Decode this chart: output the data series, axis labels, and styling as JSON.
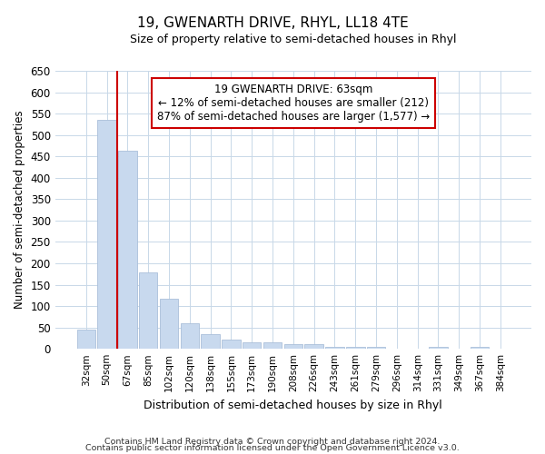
{
  "title": "19, GWENARTH DRIVE, RHYL, LL18 4TE",
  "subtitle": "Size of property relative to semi-detached houses in Rhyl",
  "xlabel": "Distribution of semi-detached houses by size in Rhyl",
  "ylabel": "Number of semi-detached properties",
  "categories": [
    "32sqm",
    "50sqm",
    "67sqm",
    "85sqm",
    "102sqm",
    "120sqm",
    "138sqm",
    "155sqm",
    "173sqm",
    "190sqm",
    "208sqm",
    "226sqm",
    "243sqm",
    "261sqm",
    "279sqm",
    "296sqm",
    "314sqm",
    "331sqm",
    "349sqm",
    "367sqm",
    "384sqm"
  ],
  "values": [
    45,
    535,
    463,
    178,
    118,
    60,
    34,
    21,
    15,
    15,
    10,
    11,
    5,
    5,
    4,
    1,
    0,
    4,
    0,
    4,
    0
  ],
  "bar_color": "#c8d9ee",
  "bar_edge_color": "#aabfda",
  "grid_color": "#c8d8e8",
  "background_color": "#ffffff",
  "fig_background": "#ffffff",
  "vline_color": "#cc0000",
  "vline_xindex": 1.5,
  "annotation_text": "19 GWENARTH DRIVE: 63sqm\n← 12% of semi-detached houses are smaller (212)\n87% of semi-detached houses are larger (1,577) →",
  "annotation_box_facecolor": "#ffffff",
  "annotation_box_edgecolor": "#cc0000",
  "footnote1": "Contains HM Land Registry data © Crown copyright and database right 2024.",
  "footnote2": "Contains public sector information licensed under the Open Government Licence v3.0.",
  "ylim": [
    0,
    650
  ],
  "yticks": [
    0,
    50,
    100,
    150,
    200,
    250,
    300,
    350,
    400,
    450,
    500,
    550,
    600,
    650
  ]
}
